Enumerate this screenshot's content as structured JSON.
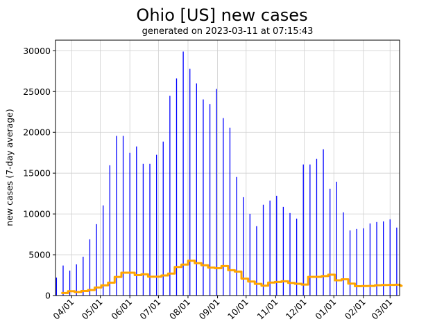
{
  "chart_data": {
    "type": "bar",
    "title": "Ohio [US] new cases",
    "subtitle": "generated on 2023-03-11 at 07:15:43",
    "xlabel": "",
    "ylabel": "new cases (7-day average)",
    "ylim": [
      0,
      31300
    ],
    "xlim": [
      "2022-03-15",
      "2023-03-11"
    ],
    "grid": true,
    "colors": {
      "bars": "#0000ff",
      "average": "#ffa500",
      "grid": "#d0d0d0"
    },
    "yticks": [
      0,
      5000,
      10000,
      15000,
      20000,
      25000,
      30000
    ],
    "xticks": [
      {
        "date": "2022-04-01",
        "label": "04/01"
      },
      {
        "date": "2022-05-01",
        "label": "05/01"
      },
      {
        "date": "2022-06-01",
        "label": "06/01"
      },
      {
        "date": "2022-07-01",
        "label": "07/01"
      },
      {
        "date": "2022-08-01",
        "label": "08/01"
      },
      {
        "date": "2022-09-01",
        "label": "09/01"
      },
      {
        "date": "2022-10-01",
        "label": "10/01"
      },
      {
        "date": "2022-11-01",
        "label": "11/01"
      },
      {
        "date": "2022-12-01",
        "label": "12/01"
      },
      {
        "date": "2023-01-01",
        "label": "01/01"
      },
      {
        "date": "2023-02-01",
        "label": "02/01"
      },
      {
        "date": "2023-03-01",
        "label": "03/01"
      }
    ],
    "x": [
      "2022-03-16",
      "2022-03-23",
      "2022-03-30",
      "2022-04-06",
      "2022-04-13",
      "2022-04-20",
      "2022-04-27",
      "2022-05-04",
      "2022-05-11",
      "2022-05-18",
      "2022-05-25",
      "2022-06-01",
      "2022-06-08",
      "2022-06-15",
      "2022-06-22",
      "2022-06-29",
      "2022-07-06",
      "2022-07-13",
      "2022-07-20",
      "2022-07-27",
      "2022-08-03",
      "2022-08-10",
      "2022-08-17",
      "2022-08-24",
      "2022-08-31",
      "2022-09-07",
      "2022-09-14",
      "2022-09-21",
      "2022-09-28",
      "2022-10-05",
      "2022-10-12",
      "2022-10-19",
      "2022-10-26",
      "2022-11-02",
      "2022-11-09",
      "2022-11-16",
      "2022-11-23",
      "2022-11-30",
      "2022-12-07",
      "2022-12-14",
      "2022-12-21",
      "2022-12-28",
      "2023-01-04",
      "2023-01-11",
      "2023-01-18",
      "2023-01-25",
      "2023-02-01",
      "2023-02-08",
      "2023-02-15",
      "2023-02-22",
      "2023-03-01",
      "2023-03-08"
    ],
    "series": [
      {
        "kind": "bar",
        "values": [
          2200,
          3680,
          3060,
          3820,
          4760,
          6900,
          8750,
          11050,
          15970,
          19570,
          19570,
          17500,
          18270,
          16140,
          16140,
          17250,
          18860,
          24470,
          26600,
          29900,
          27780,
          26000,
          24040,
          23480,
          25320,
          21750,
          20560,
          14530,
          12060,
          10020,
          8500,
          11130,
          11640,
          12230,
          10870,
          10110,
          9430,
          16060,
          16060,
          16740,
          17930,
          13080,
          13930,
          10200,
          7990,
          8160,
          8240,
          8840,
          9010,
          9090,
          9340,
          8330
        ]
      },
      {
        "kind": "step-line",
        "values": [
          310,
          530,
          440,
          550,
          680,
          990,
          1250,
          1580,
          2280,
          2800,
          2800,
          2500,
          2610,
          2310,
          2310,
          2460,
          2690,
          3500,
          3800,
          4270,
          3970,
          3710,
          3430,
          3350,
          3620,
          3110,
          2940,
          2080,
          1720,
          1430,
          1210,
          1590,
          1660,
          1750,
          1550,
          1440,
          1350,
          2290,
          2290,
          2390,
          2560,
          1870,
          1990,
          1460,
          1140,
          1170,
          1180,
          1260,
          1290,
          1300,
          1330,
          1190
        ]
      }
    ]
  }
}
